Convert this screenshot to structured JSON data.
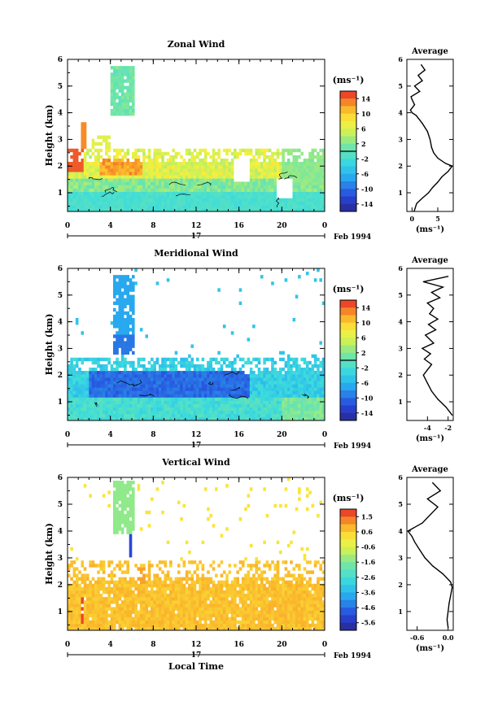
{
  "chart_data": [
    {
      "type": "heatmap",
      "title": "Zonal Wind",
      "ylabel": "Height (km)",
      "xlim": [
        0,
        24
      ],
      "ylim": [
        0.3,
        6
      ],
      "x_ticks": [
        "0",
        "4",
        "8",
        "12",
        "16",
        "20",
        "0"
      ],
      "y_ticks": [
        "1",
        "2",
        "3",
        "4",
        "5",
        "6"
      ],
      "date_axis": {
        "day_label": "17",
        "month_label": "Feb 1994"
      },
      "colorbar": {
        "unit": "(ms⁻¹)",
        "ticks": [
          "14",
          "10",
          "6",
          "2",
          "-2",
          "-6",
          "-10",
          "-14"
        ],
        "range": [
          -16,
          16
        ],
        "levels": 16,
        "zero_line": true
      },
      "profile": {
        "title": "Average",
        "xlabel": "(ms⁻¹)",
        "x_ticks": [
          "0",
          "5"
        ],
        "xlim": [
          -1,
          8
        ],
        "points": [
          [
            0.3,
            0.4
          ],
          [
            0.6,
            0.9
          ],
          [
            0.8,
            2.0
          ],
          [
            1.0,
            3.2
          ],
          [
            1.2,
            4.0
          ],
          [
            1.4,
            5.0
          ],
          [
            1.6,
            5.8
          ],
          [
            1.8,
            7.0
          ],
          [
            2.0,
            7.8
          ],
          [
            2.1,
            6.5
          ],
          [
            2.3,
            5.0
          ],
          [
            2.5,
            4.2
          ],
          [
            2.7,
            3.8
          ],
          [
            3.0,
            3.5
          ],
          [
            3.3,
            3.0
          ],
          [
            3.6,
            2.0
          ],
          [
            3.9,
            0.8
          ],
          [
            4.0,
            0.0
          ],
          [
            4.1,
            -0.3
          ],
          [
            4.3,
            0.5
          ],
          [
            4.5,
            0.0
          ],
          [
            4.6,
            -0.2
          ],
          [
            4.8,
            1.5
          ],
          [
            5.0,
            0.5
          ],
          [
            5.2,
            2.0
          ],
          [
            5.4,
            1.2
          ],
          [
            5.6,
            2.5
          ],
          [
            5.8,
            1.8
          ]
        ]
      }
    },
    {
      "type": "heatmap",
      "title": "Meridional Wind",
      "ylabel": "Height (km)",
      "xlim": [
        0,
        24
      ],
      "ylim": [
        0.3,
        6
      ],
      "x_ticks": [
        "0",
        "4",
        "8",
        "12",
        "16",
        "20",
        "0"
      ],
      "y_ticks": [
        "1",
        "2",
        "3",
        "4",
        "5",
        "6"
      ],
      "date_axis": {
        "day_label": "17",
        "month_label": "Feb 1994"
      },
      "colorbar": {
        "unit": "(ms⁻¹)",
        "ticks": [
          "14",
          "10",
          "6",
          "2",
          "-2",
          "-6",
          "-10",
          "-14"
        ],
        "range": [
          -16,
          16
        ],
        "levels": 16,
        "zero_line": true
      },
      "profile": {
        "title": "Average",
        "xlabel": "(ms⁻¹)",
        "x_ticks": [
          "-4",
          "-2"
        ],
        "xlim": [
          -6,
          -1.5
        ],
        "points": [
          [
            0.5,
            -1.6
          ],
          [
            0.8,
            -2.2
          ],
          [
            1.1,
            -3.0
          ],
          [
            1.4,
            -3.6
          ],
          [
            1.7,
            -4.0
          ],
          [
            2.0,
            -4.4
          ],
          [
            2.2,
            -4.0
          ],
          [
            2.4,
            -3.6
          ],
          [
            2.6,
            -4.3
          ],
          [
            2.8,
            -3.7
          ],
          [
            3.0,
            -4.5
          ],
          [
            3.2,
            -3.4
          ],
          [
            3.5,
            -4.2
          ],
          [
            3.7,
            -3.2
          ],
          [
            3.9,
            -3.9
          ],
          [
            4.1,
            -3.0
          ],
          [
            4.3,
            -3.8
          ],
          [
            4.5,
            -3.4
          ],
          [
            4.7,
            -4.0
          ],
          [
            4.9,
            -2.8
          ],
          [
            5.1,
            -3.6
          ],
          [
            5.3,
            -2.5
          ],
          [
            5.5,
            -4.4
          ],
          [
            5.7,
            -2.0
          ]
        ]
      }
    },
    {
      "type": "heatmap",
      "title": "Vertical Wind",
      "ylabel": "Height (km)",
      "xlabel": "Local Time",
      "xlim": [
        0,
        24
      ],
      "ylim": [
        0.3,
        6
      ],
      "x_ticks": [
        "0",
        "4",
        "8",
        "12",
        "16",
        "20",
        "0"
      ],
      "y_ticks": [
        "1",
        "2",
        "3",
        "4",
        "5",
        "6"
      ],
      "date_axis": {
        "day_label": "17",
        "month_label": "Feb 1994"
      },
      "colorbar": {
        "unit": "(ms⁻¹)",
        "ticks": [
          "1.5",
          "0.6",
          "-0.6",
          "-1.6",
          "-2.6",
          "-3.6",
          "-4.6",
          "-5.6"
        ],
        "range": [
          -6.1,
          2.0
        ],
        "levels": 16,
        "zero_line": false
      },
      "profile": {
        "title": "Average",
        "xlabel": "(ms⁻¹)",
        "x_ticks": [
          "-0.6",
          "0.0"
        ],
        "xlim": [
          -0.8,
          0.1
        ],
        "points": [
          [
            0.4,
            0.0
          ],
          [
            0.7,
            -0.02
          ],
          [
            1.0,
            0.0
          ],
          [
            1.3,
            0.02
          ],
          [
            1.6,
            0.05
          ],
          [
            1.9,
            0.08
          ],
          [
            2.1,
            0.05
          ],
          [
            2.4,
            -0.1
          ],
          [
            2.7,
            -0.3
          ],
          [
            3.0,
            -0.45
          ],
          [
            3.3,
            -0.55
          ],
          [
            3.6,
            -0.65
          ],
          [
            3.8,
            -0.7
          ],
          [
            4.0,
            -0.78
          ],
          [
            4.3,
            -0.5
          ],
          [
            4.6,
            -0.35
          ],
          [
            4.9,
            -0.2
          ],
          [
            5.2,
            -0.4
          ],
          [
            5.5,
            -0.15
          ],
          [
            5.8,
            -0.3
          ]
        ]
      }
    }
  ]
}
